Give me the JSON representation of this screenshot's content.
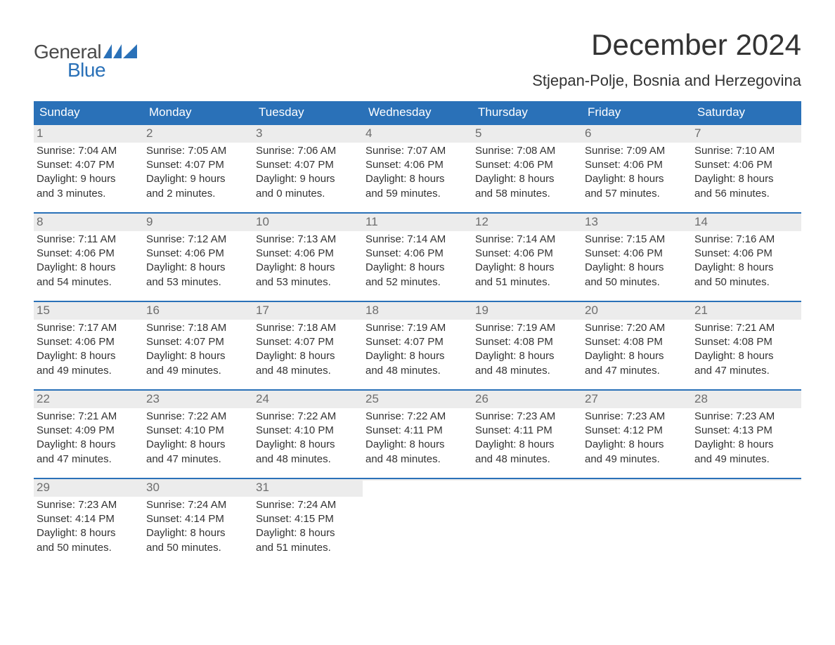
{
  "brand": {
    "word1": "General",
    "word2": "Blue",
    "word1_color": "#4a4a4a",
    "word2_color": "#2a71b8",
    "flag_color": "#2a71b8"
  },
  "title": "December 2024",
  "subtitle": "Stjepan-Polje, Bosnia and Herzegovina",
  "colors": {
    "header_bg": "#2a71b8",
    "header_text": "#ffffff",
    "row_border": "#2a71b8",
    "daynum_bg": "#ececec",
    "daynum_text": "#6d6d6d",
    "body_text": "#333333",
    "page_bg": "#ffffff"
  },
  "typography": {
    "title_fontsize": 42,
    "subtitle_fontsize": 22,
    "dow_fontsize": 17,
    "daynum_fontsize": 17,
    "body_fontsize": 15,
    "font_family": "Arial"
  },
  "days_of_week": [
    "Sunday",
    "Monday",
    "Tuesday",
    "Wednesday",
    "Thursday",
    "Friday",
    "Saturday"
  ],
  "weeks": [
    [
      {
        "n": "1",
        "sunrise": "Sunrise: 7:04 AM",
        "sunset": "Sunset: 4:07 PM",
        "dl1": "Daylight: 9 hours",
        "dl2": "and 3 minutes."
      },
      {
        "n": "2",
        "sunrise": "Sunrise: 7:05 AM",
        "sunset": "Sunset: 4:07 PM",
        "dl1": "Daylight: 9 hours",
        "dl2": "and 2 minutes."
      },
      {
        "n": "3",
        "sunrise": "Sunrise: 7:06 AM",
        "sunset": "Sunset: 4:07 PM",
        "dl1": "Daylight: 9 hours",
        "dl2": "and 0 minutes."
      },
      {
        "n": "4",
        "sunrise": "Sunrise: 7:07 AM",
        "sunset": "Sunset: 4:06 PM",
        "dl1": "Daylight: 8 hours",
        "dl2": "and 59 minutes."
      },
      {
        "n": "5",
        "sunrise": "Sunrise: 7:08 AM",
        "sunset": "Sunset: 4:06 PM",
        "dl1": "Daylight: 8 hours",
        "dl2": "and 58 minutes."
      },
      {
        "n": "6",
        "sunrise": "Sunrise: 7:09 AM",
        "sunset": "Sunset: 4:06 PM",
        "dl1": "Daylight: 8 hours",
        "dl2": "and 57 minutes."
      },
      {
        "n": "7",
        "sunrise": "Sunrise: 7:10 AM",
        "sunset": "Sunset: 4:06 PM",
        "dl1": "Daylight: 8 hours",
        "dl2": "and 56 minutes."
      }
    ],
    [
      {
        "n": "8",
        "sunrise": "Sunrise: 7:11 AM",
        "sunset": "Sunset: 4:06 PM",
        "dl1": "Daylight: 8 hours",
        "dl2": "and 54 minutes."
      },
      {
        "n": "9",
        "sunrise": "Sunrise: 7:12 AM",
        "sunset": "Sunset: 4:06 PM",
        "dl1": "Daylight: 8 hours",
        "dl2": "and 53 minutes."
      },
      {
        "n": "10",
        "sunrise": "Sunrise: 7:13 AM",
        "sunset": "Sunset: 4:06 PM",
        "dl1": "Daylight: 8 hours",
        "dl2": "and 53 minutes."
      },
      {
        "n": "11",
        "sunrise": "Sunrise: 7:14 AM",
        "sunset": "Sunset: 4:06 PM",
        "dl1": "Daylight: 8 hours",
        "dl2": "and 52 minutes."
      },
      {
        "n": "12",
        "sunrise": "Sunrise: 7:14 AM",
        "sunset": "Sunset: 4:06 PM",
        "dl1": "Daylight: 8 hours",
        "dl2": "and 51 minutes."
      },
      {
        "n": "13",
        "sunrise": "Sunrise: 7:15 AM",
        "sunset": "Sunset: 4:06 PM",
        "dl1": "Daylight: 8 hours",
        "dl2": "and 50 minutes."
      },
      {
        "n": "14",
        "sunrise": "Sunrise: 7:16 AM",
        "sunset": "Sunset: 4:06 PM",
        "dl1": "Daylight: 8 hours",
        "dl2": "and 50 minutes."
      }
    ],
    [
      {
        "n": "15",
        "sunrise": "Sunrise: 7:17 AM",
        "sunset": "Sunset: 4:06 PM",
        "dl1": "Daylight: 8 hours",
        "dl2": "and 49 minutes."
      },
      {
        "n": "16",
        "sunrise": "Sunrise: 7:18 AM",
        "sunset": "Sunset: 4:07 PM",
        "dl1": "Daylight: 8 hours",
        "dl2": "and 49 minutes."
      },
      {
        "n": "17",
        "sunrise": "Sunrise: 7:18 AM",
        "sunset": "Sunset: 4:07 PM",
        "dl1": "Daylight: 8 hours",
        "dl2": "and 48 minutes."
      },
      {
        "n": "18",
        "sunrise": "Sunrise: 7:19 AM",
        "sunset": "Sunset: 4:07 PM",
        "dl1": "Daylight: 8 hours",
        "dl2": "and 48 minutes."
      },
      {
        "n": "19",
        "sunrise": "Sunrise: 7:19 AM",
        "sunset": "Sunset: 4:08 PM",
        "dl1": "Daylight: 8 hours",
        "dl2": "and 48 minutes."
      },
      {
        "n": "20",
        "sunrise": "Sunrise: 7:20 AM",
        "sunset": "Sunset: 4:08 PM",
        "dl1": "Daylight: 8 hours",
        "dl2": "and 47 minutes."
      },
      {
        "n": "21",
        "sunrise": "Sunrise: 7:21 AM",
        "sunset": "Sunset: 4:08 PM",
        "dl1": "Daylight: 8 hours",
        "dl2": "and 47 minutes."
      }
    ],
    [
      {
        "n": "22",
        "sunrise": "Sunrise: 7:21 AM",
        "sunset": "Sunset: 4:09 PM",
        "dl1": "Daylight: 8 hours",
        "dl2": "and 47 minutes."
      },
      {
        "n": "23",
        "sunrise": "Sunrise: 7:22 AM",
        "sunset": "Sunset: 4:10 PM",
        "dl1": "Daylight: 8 hours",
        "dl2": "and 47 minutes."
      },
      {
        "n": "24",
        "sunrise": "Sunrise: 7:22 AM",
        "sunset": "Sunset: 4:10 PM",
        "dl1": "Daylight: 8 hours",
        "dl2": "and 48 minutes."
      },
      {
        "n": "25",
        "sunrise": "Sunrise: 7:22 AM",
        "sunset": "Sunset: 4:11 PM",
        "dl1": "Daylight: 8 hours",
        "dl2": "and 48 minutes."
      },
      {
        "n": "26",
        "sunrise": "Sunrise: 7:23 AM",
        "sunset": "Sunset: 4:11 PM",
        "dl1": "Daylight: 8 hours",
        "dl2": "and 48 minutes."
      },
      {
        "n": "27",
        "sunrise": "Sunrise: 7:23 AM",
        "sunset": "Sunset: 4:12 PM",
        "dl1": "Daylight: 8 hours",
        "dl2": "and 49 minutes."
      },
      {
        "n": "28",
        "sunrise": "Sunrise: 7:23 AM",
        "sunset": "Sunset: 4:13 PM",
        "dl1": "Daylight: 8 hours",
        "dl2": "and 49 minutes."
      }
    ],
    [
      {
        "n": "29",
        "sunrise": "Sunrise: 7:23 AM",
        "sunset": "Sunset: 4:14 PM",
        "dl1": "Daylight: 8 hours",
        "dl2": "and 50 minutes."
      },
      {
        "n": "30",
        "sunrise": "Sunrise: 7:24 AM",
        "sunset": "Sunset: 4:14 PM",
        "dl1": "Daylight: 8 hours",
        "dl2": "and 50 minutes."
      },
      {
        "n": "31",
        "sunrise": "Sunrise: 7:24 AM",
        "sunset": "Sunset: 4:15 PM",
        "dl1": "Daylight: 8 hours",
        "dl2": "and 51 minutes."
      },
      {
        "empty": true
      },
      {
        "empty": true
      },
      {
        "empty": true
      },
      {
        "empty": true
      }
    ]
  ]
}
